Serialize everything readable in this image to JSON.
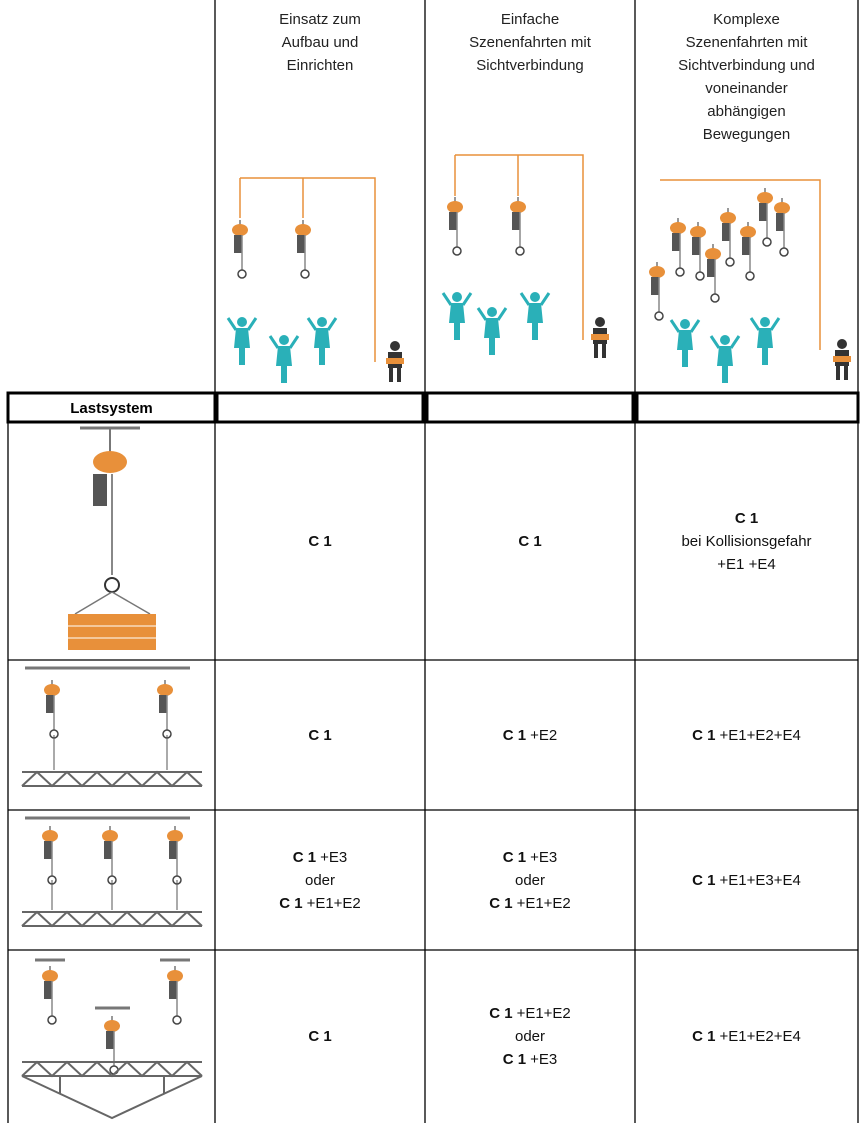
{
  "header": {
    "columns": [
      [
        "Einsatz zum",
        "Aufbau und",
        "Einrichten"
      ],
      [
        "Einfache",
        "Szenenfahrten mit",
        "Sichtverbindung"
      ],
      [
        "Komplexe",
        "Szenenfahrten mit",
        "Sichtverbindung und",
        "voneinander",
        "abhängigen",
        "Bewegungen"
      ]
    ]
  },
  "table": {
    "row_label": "Lastsystem",
    "rows": [
      [
        [
          {
            "bold": "C 1"
          }
        ],
        [
          {
            "bold": "C 1"
          }
        ],
        [
          {
            "bold": "C 1"
          },
          {
            "text": "bei Kollisionsgefahr"
          },
          {
            "text": "+E1 +E4"
          }
        ]
      ],
      [
        [
          {
            "bold": "C 1"
          }
        ],
        [
          {
            "bold": "C 1",
            "text": "+E2"
          }
        ],
        [
          {
            "bold": "C 1",
            "text": "+E1+E2+E4"
          }
        ]
      ],
      [
        [
          {
            "bold": "C 1",
            "text": "+E3"
          },
          {
            "text": "oder"
          },
          {
            "bold": "C 1",
            "text": "+E1+E2"
          }
        ],
        [
          {
            "bold": "C 1",
            "text": "+E3"
          },
          {
            "text": "oder"
          },
          {
            "bold": "C 1",
            "text": "+E1+E2"
          }
        ],
        [
          {
            "bold": "C 1",
            "text": "+E1+E3+E4"
          }
        ]
      ],
      [
        [
          {
            "bold": "C 1"
          }
        ],
        [
          {
            "bold": "C 1",
            "text": "+E1+E2"
          },
          {
            "text": "oder"
          },
          {
            "bold": "C 1",
            "text": "+E3"
          }
        ],
        [
          {
            "bold": "C 1",
            "text": "+E1+E2+E4"
          }
        ]
      ]
    ]
  }
}
